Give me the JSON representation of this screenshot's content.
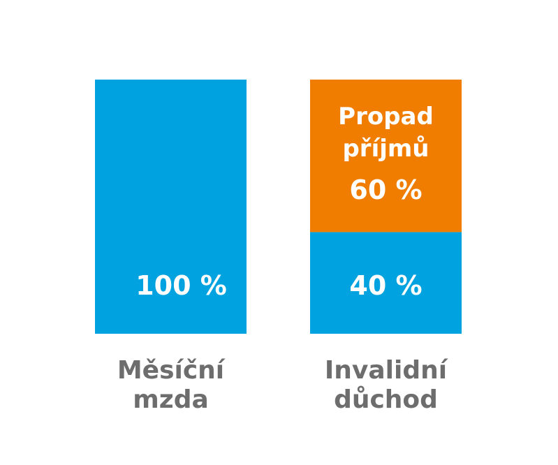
{
  "chart_data": {
    "type": "bar",
    "stacked": true,
    "title": "",
    "xlabel": "",
    "ylabel": "",
    "ylim": [
      0,
      100
    ],
    "grid": false,
    "legend": "none",
    "categories": [
      {
        "line1": "Měsíční",
        "line2": "mzda"
      },
      {
        "line1": "Invalidní",
        "line2": "důchod"
      }
    ],
    "series": [
      {
        "color": "#00a3e0",
        "values": [
          100,
          40
        ],
        "labels": [
          "100 %",
          "40 %"
        ]
      },
      {
        "color": "#f07d00",
        "values": [
          0,
          60
        ],
        "labels": [
          "",
          "60 %"
        ],
        "caption": {
          "line1": "Propad",
          "line2": "příjmů"
        }
      }
    ]
  }
}
